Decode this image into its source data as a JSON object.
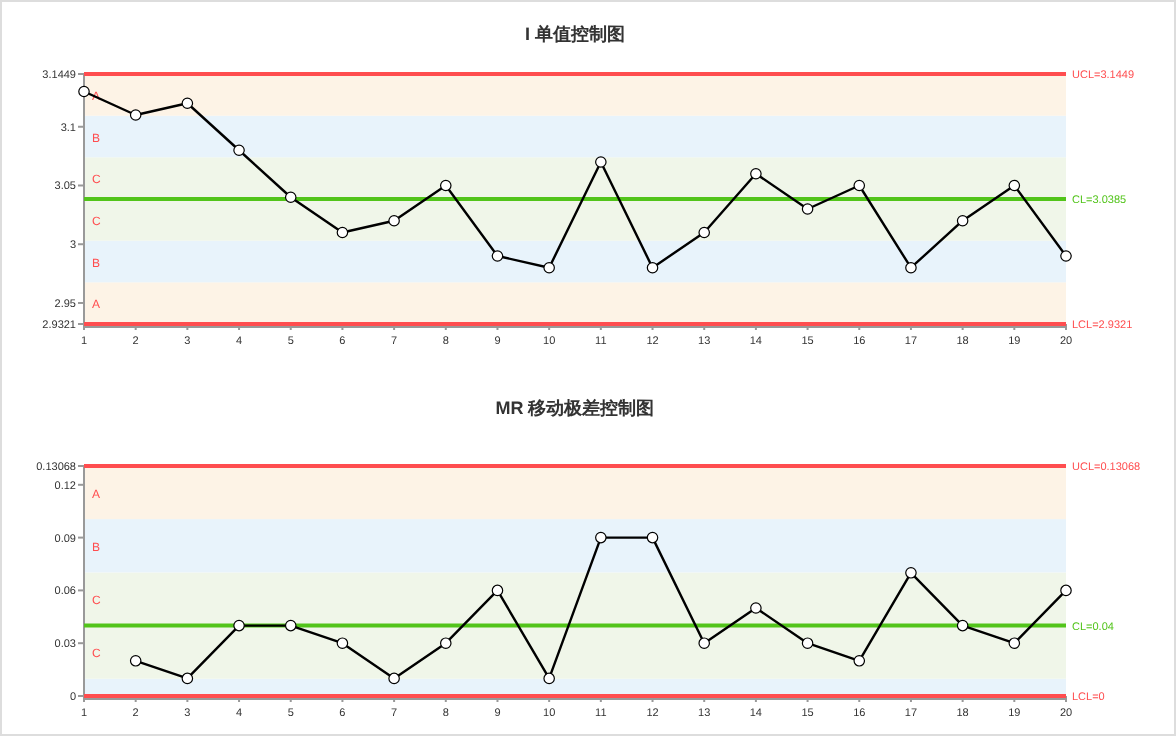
{
  "chart_data": [
    {
      "type": "line",
      "title": "I 单值控制图",
      "x": [
        1,
        2,
        3,
        4,
        5,
        6,
        7,
        8,
        9,
        10,
        11,
        12,
        13,
        14,
        15,
        16,
        17,
        18,
        19,
        20
      ],
      "series": [
        {
          "color": "#000000",
          "values": [
            3.13,
            3.11,
            3.12,
            3.08,
            3.04,
            3.01,
            3.02,
            3.05,
            2.99,
            2.98,
            3.07,
            2.98,
            3.01,
            3.06,
            3.03,
            3.05,
            2.98,
            3.02,
            3.05,
            2.99
          ]
        }
      ],
      "xlim": [
        1,
        20
      ],
      "xticks": [
        1,
        2,
        3,
        4,
        5,
        6,
        7,
        8,
        9,
        10,
        11,
        12,
        13,
        14,
        15,
        16,
        17,
        18,
        19,
        20
      ],
      "ylim": [
        2.9321,
        3.1449
      ],
      "yticks": [
        2.9321,
        2.95,
        3,
        3.05,
        3.1,
        3.1449
      ],
      "marker": "circle",
      "line_style": "solid",
      "grid": false,
      "ref_lines": [
        {
          "axis": "y",
          "value": 3.1449,
          "label": "UCL=3.1449",
          "color": "#ff4d4f"
        },
        {
          "axis": "y",
          "value": 3.0385,
          "label": "CL=3.0385",
          "color": "#52c41a"
        },
        {
          "axis": "y",
          "value": 2.9321,
          "label": "LCL=2.9321",
          "color": "#ff4d4f"
        }
      ],
      "bands": [
        {
          "axis": "y",
          "from": 2.9321,
          "to": 2.9676,
          "label": "A",
          "color": "#fdf3e6"
        },
        {
          "axis": "y",
          "from": 2.9676,
          "to": 3.003,
          "label": "B",
          "color": "#e8f3fb"
        },
        {
          "axis": "y",
          "from": 3.003,
          "to": 3.0385,
          "label": "C",
          "color": "#f0f6e9"
        },
        {
          "axis": "y",
          "from": 3.0385,
          "to": 3.074,
          "label": "C",
          "color": "#f0f6e9"
        },
        {
          "axis": "y",
          "from": 3.074,
          "to": 3.1094,
          "label": "B",
          "color": "#e8f3fb"
        },
        {
          "axis": "y",
          "from": 3.1094,
          "to": 3.1449,
          "label": "A",
          "color": "#fdf3e6"
        }
      ]
    },
    {
      "type": "line",
      "title": "MR 移动极差控制图",
      "x": [
        2,
        3,
        4,
        5,
        6,
        7,
        8,
        9,
        10,
        11,
        12,
        13,
        14,
        15,
        16,
        17,
        18,
        19,
        20
      ],
      "series": [
        {
          "color": "#000000",
          "values": [
            0.02,
            0.01,
            0.04,
            0.04,
            0.03,
            0.01,
            0.03,
            0.06,
            0.01,
            0.09,
            0.09,
            0.03,
            0.05,
            0.03,
            0.02,
            0.07,
            0.04,
            0.03,
            0.06
          ]
        }
      ],
      "xlim": [
        1,
        20
      ],
      "xticks": [
        1,
        2,
        3,
        4,
        5,
        6,
        7,
        8,
        9,
        10,
        11,
        12,
        13,
        14,
        15,
        16,
        17,
        18,
        19,
        20
      ],
      "ylim": [
        0,
        0.13068
      ],
      "yticks": [
        0,
        0.03,
        0.06,
        0.09,
        0.12,
        0.13068
      ],
      "marker": "circle",
      "line_style": "solid",
      "grid": false,
      "ref_lines": [
        {
          "axis": "y",
          "value": 0.13068,
          "label": "UCL=0.13068",
          "color": "#ff4d4f"
        },
        {
          "axis": "y",
          "value": 0.04,
          "label": "CL=0.04",
          "color": "#52c41a"
        },
        {
          "axis": "y",
          "value": 0,
          "label": "LCL=0",
          "color": "#ff4d4f"
        }
      ],
      "bands": [
        {
          "axis": "y",
          "from": 0,
          "to": 0.0098,
          "label": null,
          "color": "#e8f3fb"
        },
        {
          "axis": "y",
          "from": 0.0098,
          "to": 0.04,
          "label": "C",
          "color": "#f0f6e9"
        },
        {
          "axis": "y",
          "from": 0.04,
          "to": 0.0702,
          "label": "C",
          "color": "#f0f6e9"
        },
        {
          "axis": "y",
          "from": 0.0702,
          "to": 0.1005,
          "label": "B",
          "color": "#e8f3fb"
        },
        {
          "axis": "y",
          "from": 0.1005,
          "to": 0.13068,
          "label": "A",
          "color": "#fdf3e6"
        }
      ]
    }
  ]
}
